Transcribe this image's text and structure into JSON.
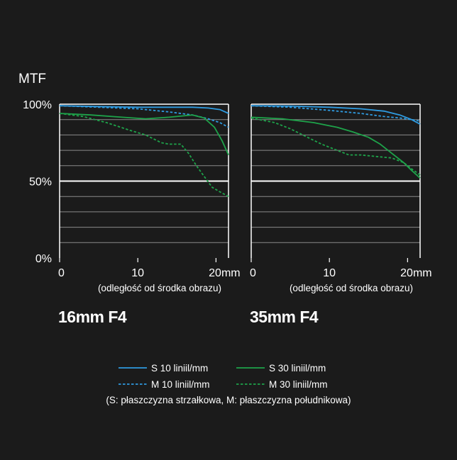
{
  "y_axis_title": "MTF",
  "y_ticks": [
    {
      "value": 100,
      "label": "100%"
    },
    {
      "value": 50,
      "label": "50%"
    },
    {
      "value": 0,
      "label": "0%"
    }
  ],
  "x_ticks": [
    {
      "value": 0,
      "label": "0"
    },
    {
      "value": 10,
      "label": "10"
    },
    {
      "value": 20,
      "label": "20mm"
    }
  ],
  "xlabel": "(odległość od środka obrazu)",
  "legend": {
    "note": "(S: płaszczyzna strzałkowa, M: płaszczyzna południkowa)"
  },
  "colors": {
    "blue": "#2f9be0",
    "green": "#1ea34a",
    "background": "#1b1b1b",
    "grid": "#8a8a8a",
    "frame": "#ffffff"
  },
  "chart_data": [
    {
      "type": "line",
      "caption": "16mm F4",
      "xlim": [
        0,
        21.6
      ],
      "ylim": [
        0,
        100
      ],
      "grid": true,
      "legend_position": "bottom",
      "series": [
        {
          "name": "S 10 liniil/mm",
          "color": "#2f9be0",
          "dash": "solid",
          "x": [
            0,
            5,
            10,
            14,
            17,
            19,
            20.5,
            21.6
          ],
          "y": [
            99,
            98.5,
            98,
            98,
            98,
            97.5,
            96.5,
            94
          ]
        },
        {
          "name": "M 10 liniil/mm",
          "color": "#2f9be0",
          "dash": "dashed",
          "x": [
            0,
            5,
            10,
            14,
            17,
            19,
            20.5,
            21.6
          ],
          "y": [
            99,
            98,
            97,
            95,
            93,
            90.5,
            88,
            85
          ]
        },
        {
          "name": "S 30 liniil/mm",
          "color": "#1ea34a",
          "dash": "solid",
          "x": [
            0,
            4,
            8,
            11,
            14,
            17,
            18.5,
            19.8,
            20.8,
            21.6
          ],
          "y": [
            94,
            93,
            91.5,
            90.5,
            91.5,
            93,
            91,
            85,
            76,
            67
          ]
        },
        {
          "name": "M 30 liniil/mm",
          "color": "#1ea34a",
          "dash": "dashed",
          "x": [
            0,
            3,
            6,
            9,
            11,
            13,
            14,
            15.5,
            16.5,
            17.5,
            18.5,
            19.5,
            20.5,
            21.6
          ],
          "y": [
            94,
            92,
            88,
            83,
            80,
            75,
            74,
            74,
            68,
            60,
            53,
            46,
            43,
            40
          ]
        }
      ]
    },
    {
      "type": "line",
      "caption": "35mm F4",
      "xlim": [
        0,
        21.6
      ],
      "ylim": [
        0,
        100
      ],
      "grid": true,
      "legend_position": "bottom",
      "series": [
        {
          "name": "S 10 liniil/mm",
          "color": "#2f9be0",
          "dash": "solid",
          "x": [
            0,
            5,
            10,
            14,
            17,
            19,
            20.5,
            21.6
          ],
          "y": [
            99,
            98.8,
            98,
            97,
            95.5,
            93,
            90,
            87
          ]
        },
        {
          "name": "M 10 liniil/mm",
          "color": "#2f9be0",
          "dash": "dashed",
          "x": [
            0,
            5,
            10,
            14,
            17,
            19,
            20.5,
            21.6
          ],
          "y": [
            99,
            98,
            96,
            94,
            92,
            91,
            90,
            89
          ]
        },
        {
          "name": "S 30 liniil/mm",
          "color": "#1ea34a",
          "dash": "solid",
          "x": [
            0,
            4,
            8,
            11,
            13,
            15,
            16.5,
            18,
            19.5,
            20.5,
            21.6
          ],
          "y": [
            91.5,
            90.5,
            88,
            85,
            82,
            78.5,
            74,
            68,
            62,
            57,
            52
          ]
        },
        {
          "name": "M 30 liniil/mm",
          "color": "#1ea34a",
          "dash": "dashed",
          "x": [
            0,
            3,
            5,
            7,
            9,
            11,
            12.5,
            14,
            16,
            18,
            19.5,
            20.5,
            21.6
          ],
          "y": [
            91,
            88,
            84,
            79,
            74,
            70,
            67,
            67,
            66,
            65,
            62,
            58,
            54
          ]
        }
      ]
    }
  ]
}
